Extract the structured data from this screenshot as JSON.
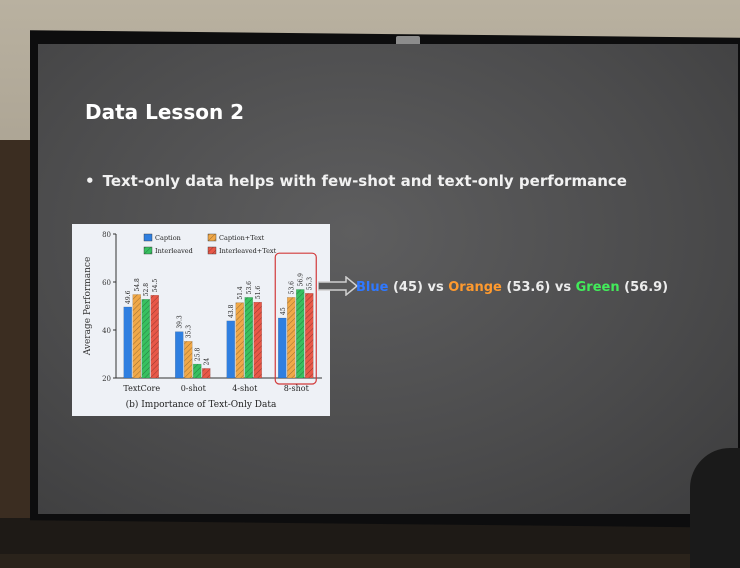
{
  "slide": {
    "title": "Data Lesson 2",
    "bullet": "Text-only data helps with few-shot and text-only performance"
  },
  "comparison": {
    "blue_label": "Blue",
    "blue_value": "(45)",
    "vs1": "vs",
    "orange_label": "Orange",
    "orange_value": "(53.6)",
    "vs2": "vs",
    "green_label": "Green",
    "green_value": "(56.9)"
  },
  "colors": {
    "caption": "#2f7fe0",
    "caption_text": "#f0a848",
    "interleaved": "#38c060",
    "interleaved_text": "#e85848",
    "highlight_box": "#d23a3a"
  },
  "chart_data": {
    "type": "bar",
    "title": "(b) Importance of Text-Only Data",
    "ylabel": "Average Performance",
    "ylim": [
      20,
      80
    ],
    "yticks": [
      "20",
      "40",
      "60",
      "80"
    ],
    "categories": [
      "TextCore",
      "0-shot",
      "4-shot",
      "8-shot"
    ],
    "series": [
      {
        "name": "Caption",
        "values": [
          49.6,
          39.3,
          43.8,
          45
        ]
      },
      {
        "name": "Caption+Text",
        "values": [
          54.8,
          35.3,
          51.4,
          53.6
        ]
      },
      {
        "name": "Interleaved",
        "values": [
          52.8,
          25.8,
          53.6,
          56.9
        ]
      },
      {
        "name": "Interleaved+Text",
        "values": [
          54.5,
          24,
          51.6,
          55.3
        ]
      }
    ],
    "labels": [
      [
        "49.6",
        "54.8",
        "52.8",
        "54.5"
      ],
      [
        "39.3",
        "35.3",
        "25.8",
        "24"
      ],
      [
        "43.8",
        "51.4",
        "53.6",
        "51.6"
      ],
      [
        "45",
        "53.6",
        "56.9",
        "55.3"
      ]
    ],
    "legend": "top"
  }
}
